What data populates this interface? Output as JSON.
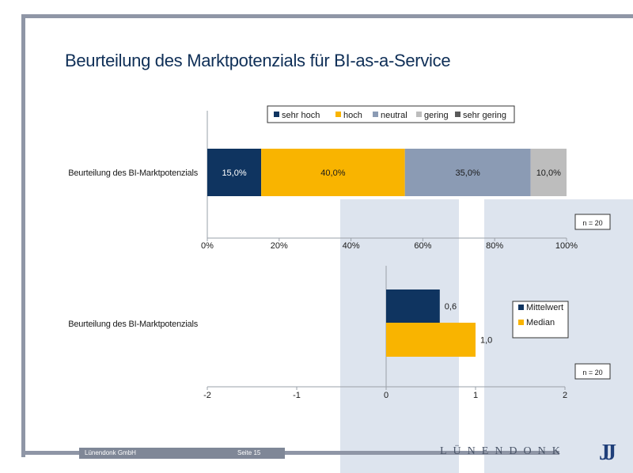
{
  "slide": {
    "title": "Beurteilung des Marktpotenzials für BI-as-a-Service",
    "footer_company": "Lünendonk GmbH",
    "footer_page": "Seite 15",
    "logo_text": "LÜNENDONK",
    "logo_mark": "JJ"
  },
  "colors": {
    "sehr_hoch": "#0f3460",
    "hoch": "#f9b400",
    "neutral": "#8b9bb4",
    "gering": "#bdbdbd",
    "sehr_gering": "#5a5a5a"
  },
  "chart_data": [
    {
      "type": "bar",
      "orientation": "horizontal",
      "stacked": true,
      "categories": [
        "Beurteilung des BI-Marktpotenzials"
      ],
      "series": [
        {
          "name": "sehr hoch",
          "values": [
            15.0
          ],
          "label": "15,0%"
        },
        {
          "name": "hoch",
          "values": [
            40.0
          ],
          "label": "40,0%"
        },
        {
          "name": "neutral",
          "values": [
            35.0
          ],
          "label": "35,0%"
        },
        {
          "name": "gering",
          "values": [
            10.0
          ],
          "label": "10,0%"
        },
        {
          "name": "sehr gering",
          "values": [
            0.0
          ],
          "label": ""
        }
      ],
      "xlim": [
        0,
        100
      ],
      "xticks": [
        "0%",
        "20%",
        "40%",
        "60%",
        "80%",
        "100%"
      ],
      "legend": "top",
      "annotation": "n = 20"
    },
    {
      "type": "bar",
      "orientation": "horizontal",
      "categories": [
        "Beurteilung des BI-Marktpotenzials"
      ],
      "series": [
        {
          "name": "Mittelwert",
          "values": [
            0.6
          ],
          "label": "0,6"
        },
        {
          "name": "Median",
          "values": [
            1.0
          ],
          "label": "1,0"
        }
      ],
      "xlim": [
        -2,
        2
      ],
      "xticks": [
        "-2",
        "-1",
        "0",
        "1",
        "2"
      ],
      "legend": "right",
      "annotation": "n = 20"
    }
  ]
}
